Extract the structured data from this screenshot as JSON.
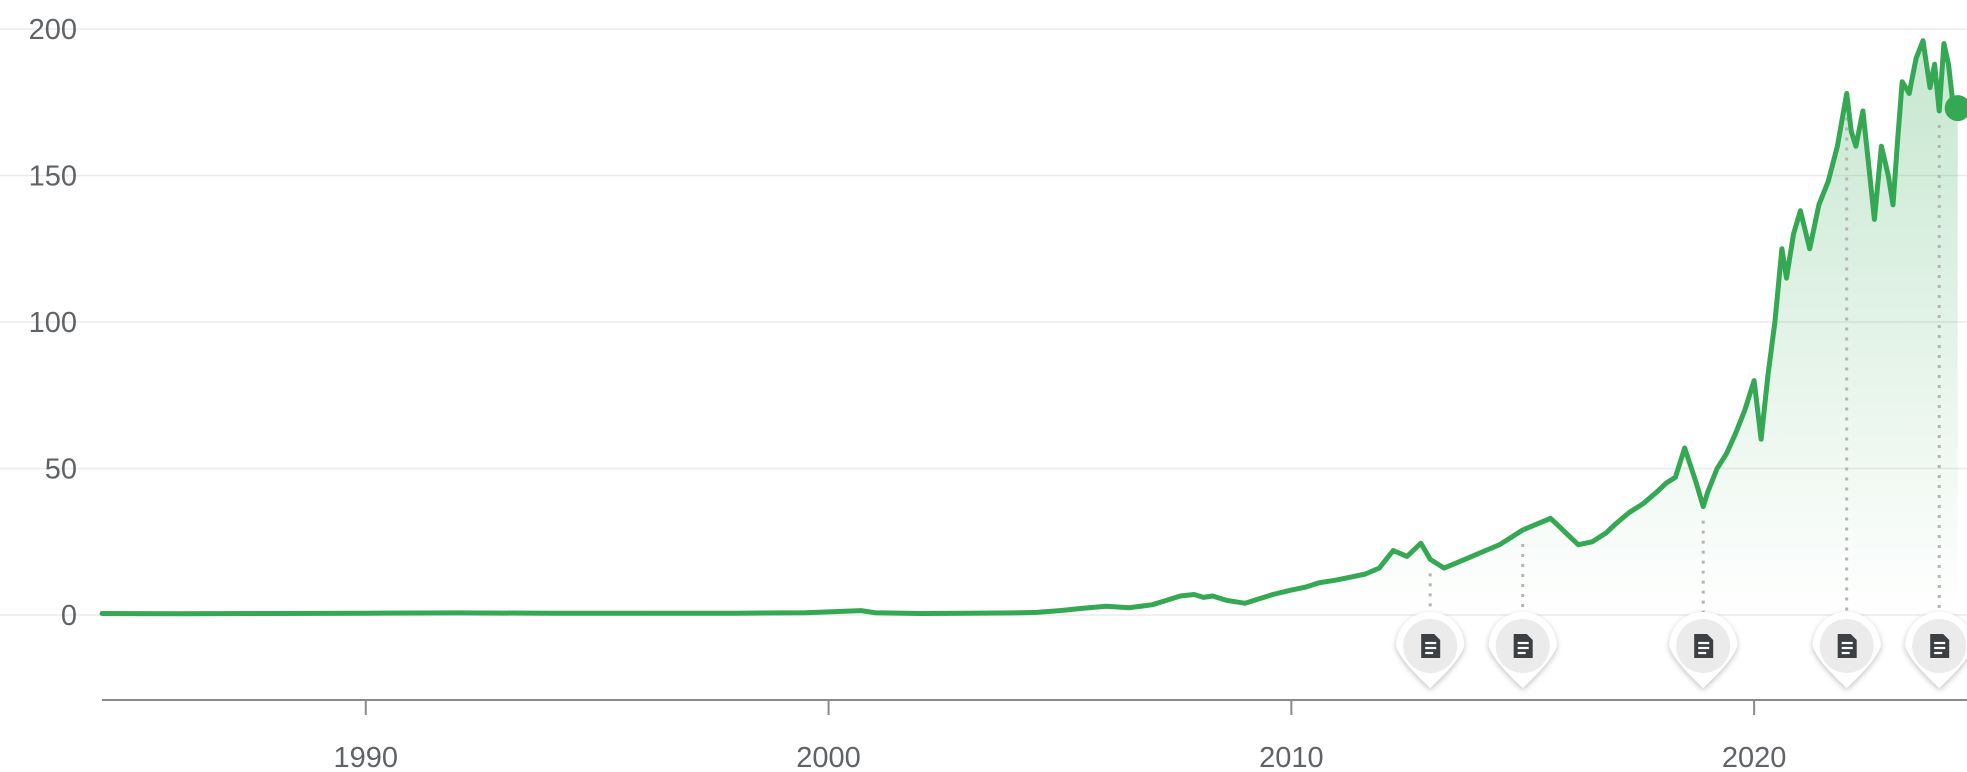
{
  "chart_data": {
    "type": "line",
    "title": "",
    "xlabel": "",
    "ylabel": "",
    "x_ticks": [
      "1990",
      "2000",
      "2010",
      "2020"
    ],
    "y_ticks": [
      "0",
      "50",
      "100",
      "150",
      "200"
    ],
    "xlim": [
      1984.3,
      2024.6
    ],
    "ylim": [
      -28,
      200
    ],
    "grid": true,
    "legend": "none",
    "fill_area": true,
    "colors": {
      "line": "#34a853",
      "area": "#34a853",
      "grid": "#ebebeb",
      "axis": "#8a8a8a",
      "text": "#5f6368",
      "marker_line": "#b4b4b4"
    },
    "series": [
      {
        "x": [
          1984.3,
          1986,
          1988,
          1990,
          1992,
          1994,
          1996,
          1998,
          1999.5,
          2000.7,
          2001.0,
          2002,
          2003,
          2004,
          2004.5,
          2005,
          2005.5,
          2006,
          2006.5,
          2007,
          2007.3,
          2007.6,
          2007.9,
          2008.1,
          2008.3,
          2008.6,
          2008.8,
          2009.0,
          2009.3,
          2009.6,
          2010.0,
          2010.3,
          2010.6,
          2011.0,
          2011.3,
          2011.6,
          2011.9,
          2012.2,
          2012.5,
          2012.8,
          2013.0,
          2013.3,
          2013.6,
          2013.9,
          2014.2,
          2014.5,
          2014.8,
          2015.0,
          2015.3,
          2015.6,
          2015.8,
          2016.0,
          2016.2,
          2016.5,
          2016.8,
          2017.0,
          2017.3,
          2017.6,
          2017.9,
          2018.1,
          2018.3,
          2018.5,
          2018.75,
          2018.9,
          2019.0,
          2019.2,
          2019.4,
          2019.6,
          2019.8,
          2020.0,
          2020.15,
          2020.3,
          2020.45,
          2020.6,
          2020.7,
          2020.85,
          2021.0,
          2021.2,
          2021.4,
          2021.6,
          2021.8,
          2022.0,
          2022.1,
          2022.2,
          2022.35,
          2022.5,
          2022.6,
          2022.75,
          2022.9,
          2023.0,
          2023.1,
          2023.2,
          2023.35,
          2023.5,
          2023.65,
          2023.8,
          2023.9,
          2024.0,
          2024.1,
          2024.2,
          2024.3,
          2024.4
        ],
        "y": [
          0.5,
          0.4,
          0.5,
          0.6,
          0.7,
          0.6,
          0.6,
          0.6,
          0.8,
          1.5,
          0.8,
          0.5,
          0.6,
          0.7,
          0.9,
          1.5,
          2.3,
          3.0,
          2.5,
          3.5,
          5.0,
          6.5,
          7.0,
          6.0,
          6.5,
          5.0,
          4.5,
          4.0,
          5.5,
          7.0,
          8.5,
          9.5,
          11.0,
          12.0,
          13.0,
          14.0,
          16.0,
          22.0,
          20.0,
          24.5,
          19.0,
          16.0,
          18.0,
          20.0,
          22.0,
          24.0,
          27.0,
          29.0,
          31.0,
          33.0,
          30.0,
          27.0,
          24.0,
          25.0,
          28.0,
          31.0,
          35.0,
          38.0,
          42.0,
          45.0,
          47.0,
          57.0,
          45.0,
          37.0,
          42.0,
          50.0,
          55.0,
          62.0,
          70.0,
          80.0,
          60.0,
          82.0,
          100.0,
          125.0,
          115.0,
          130.0,
          138.0,
          125.0,
          140.0,
          148.0,
          160.0,
          178.0,
          165.0,
          160.0,
          172.0,
          150.0,
          135.0,
          160.0,
          150.0,
          140.0,
          162.0,
          182.0,
          178.0,
          190.0,
          196.0,
          180.0,
          188.0,
          172.0,
          195.0,
          188.0,
          174.0,
          173.0
        ]
      }
    ],
    "annotations": [
      {
        "type": "news-marker",
        "x": 2013.0
      },
      {
        "type": "news-marker",
        "x": 2015.0
      },
      {
        "type": "news-marker",
        "x": 2018.9
      },
      {
        "type": "news-marker",
        "x": 2022.0
      },
      {
        "type": "news-marker",
        "x": 2024.0
      }
    ],
    "annotation_icon": "document-icon"
  }
}
